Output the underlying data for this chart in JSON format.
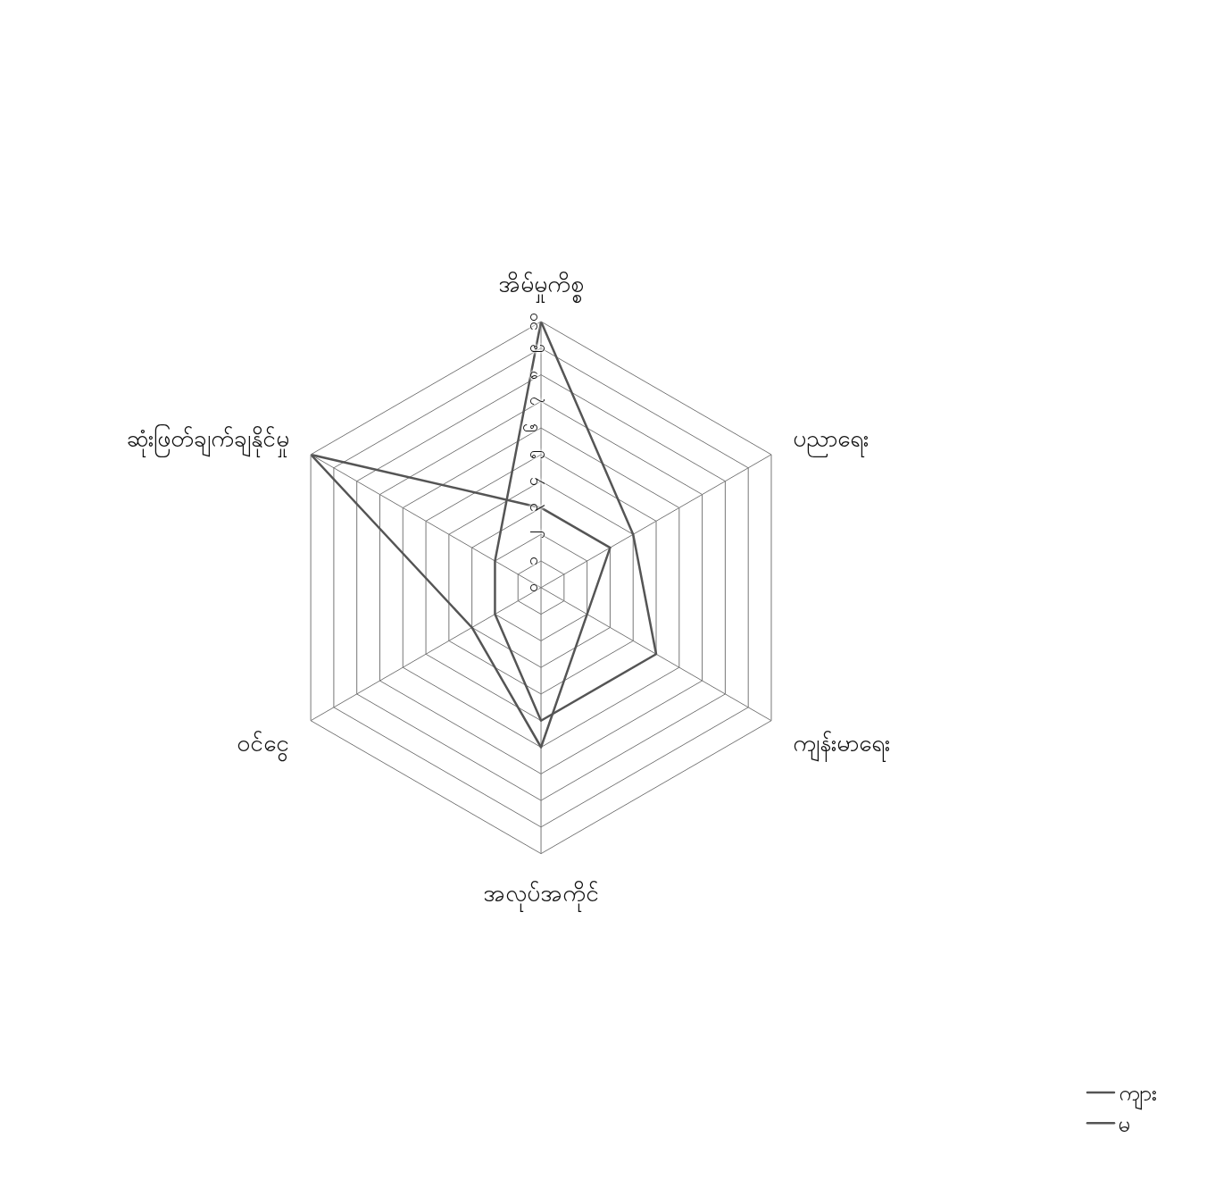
{
  "chart_data": {
    "type": "radar",
    "categories": [
      "အိမ်မှုကိစ္စ",
      "ပညာရေး",
      "ကျန်းမာရေး",
      "အလုပ်အကိုင်",
      "ဝင်ငွေ",
      "ဆုံးဖြတ်ချက်ချနိုင်မှု"
    ],
    "series": [
      {
        "name": "ကျား",
        "color": "#555555",
        "values": [
          10,
          4,
          5,
          5,
          2,
          2
        ]
      },
      {
        "name": "မ",
        "color": "#555555",
        "values": [
          3,
          3,
          2,
          6,
          3,
          10
        ]
      }
    ],
    "ylim": [
      0,
      10
    ],
    "yticks": [
      {
        "value": 0,
        "label": "၀"
      },
      {
        "value": 1,
        "label": "၁"
      },
      {
        "value": 2,
        "label": "၂"
      },
      {
        "value": 3,
        "label": "၃"
      },
      {
        "value": 4,
        "label": "၄"
      },
      {
        "value": 5,
        "label": "၅"
      },
      {
        "value": 6,
        "label": "၆"
      },
      {
        "value": 7,
        "label": "၇"
      },
      {
        "value": 8,
        "label": "၈"
      },
      {
        "value": 9,
        "label": "၉"
      },
      {
        "value": 10,
        "label": "၁၀"
      }
    ],
    "grid": true,
    "legend": "bottom right",
    "marker": "none",
    "line_style": "solid"
  }
}
